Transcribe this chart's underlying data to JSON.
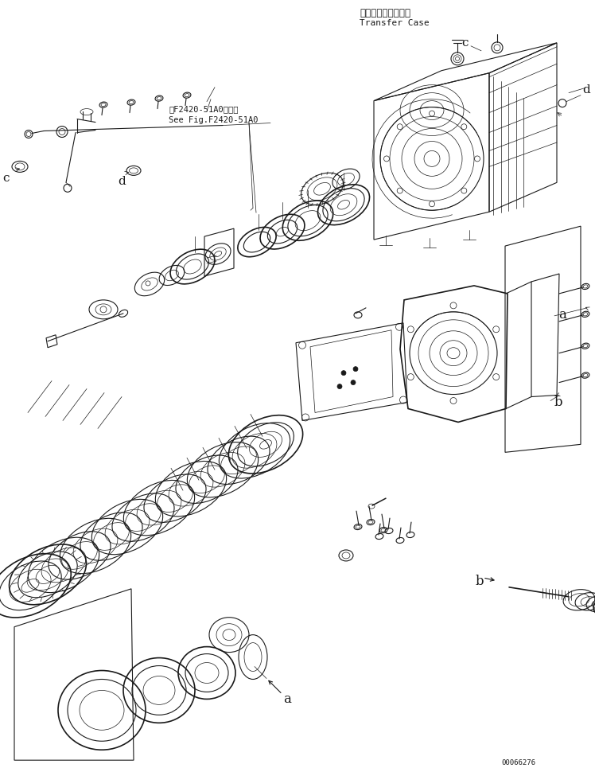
{
  "title_jp": "トランスファケース",
  "title_en": "Transfer Case",
  "doc_number": "00066276",
  "background_color": "#ffffff",
  "drawing_color": "#1a1a1a",
  "label_a1": "a",
  "label_a2": "a",
  "label_b1": "b",
  "label_b2": "b",
  "label_c1": "c",
  "label_c2": "c",
  "label_d1": "d",
  "label_d2": "d",
  "ref_text_jp": "第F2420-51A0図参照",
  "ref_text_en": "See Fig.F2420-51A0",
  "fig_width": 748,
  "fig_height": 965,
  "dpi": 100,
  "lw_thin": 0.5,
  "lw_med": 0.8,
  "lw_thick": 1.2
}
